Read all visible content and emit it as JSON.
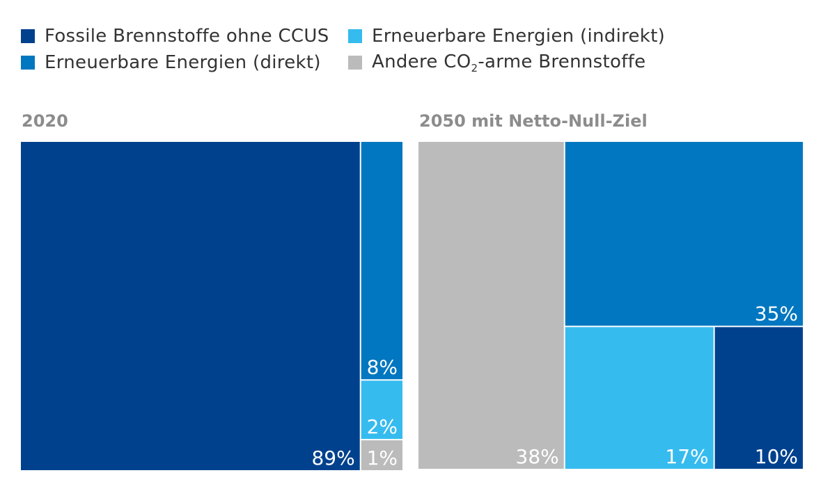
{
  "legend": {
    "items": [
      {
        "label": "Fossile Brennstoffe ohne CCUS",
        "color": "#00418e"
      },
      {
        "label": "Erneuerbare Energien (indirekt)",
        "color": "#36bbef"
      },
      {
        "label": "Erneuerbare Energien (direkt)",
        "color": "#0077c0"
      },
      {
        "label_pre": "Andere CO",
        "label_sub": "2",
        "label_post": "-arme Brennstoffe",
        "color": "#bbbbbb"
      }
    ]
  },
  "chart_data": [
    {
      "type": "treemap",
      "title": "2020",
      "segments": [
        {
          "name": "Fossile Brennstoffe ohne CCUS",
          "value": 89,
          "label": "89%"
        },
        {
          "name": "Erneuerbare Energien (direkt)",
          "value": 8,
          "label": "8%"
        },
        {
          "name": "Erneuerbare Energien (indirekt)",
          "value": 2,
          "label": "2%"
        },
        {
          "name": "Andere CO2-arme Brennstoffe",
          "value": 1,
          "label": "1%"
        }
      ]
    },
    {
      "type": "treemap",
      "title": "2050 mit Netto-Null-Ziel",
      "segments": [
        {
          "name": "Andere CO2-arme Brennstoffe",
          "value": 38,
          "label": "38%"
        },
        {
          "name": "Erneuerbare Energien (direkt)",
          "value": 35,
          "label": "35%"
        },
        {
          "name": "Erneuerbare Energien (indirekt)",
          "value": 17,
          "label": "17%"
        },
        {
          "name": "Fossile Brennstoffe ohne CCUS",
          "value": 10,
          "label": "10%"
        }
      ]
    }
  ]
}
